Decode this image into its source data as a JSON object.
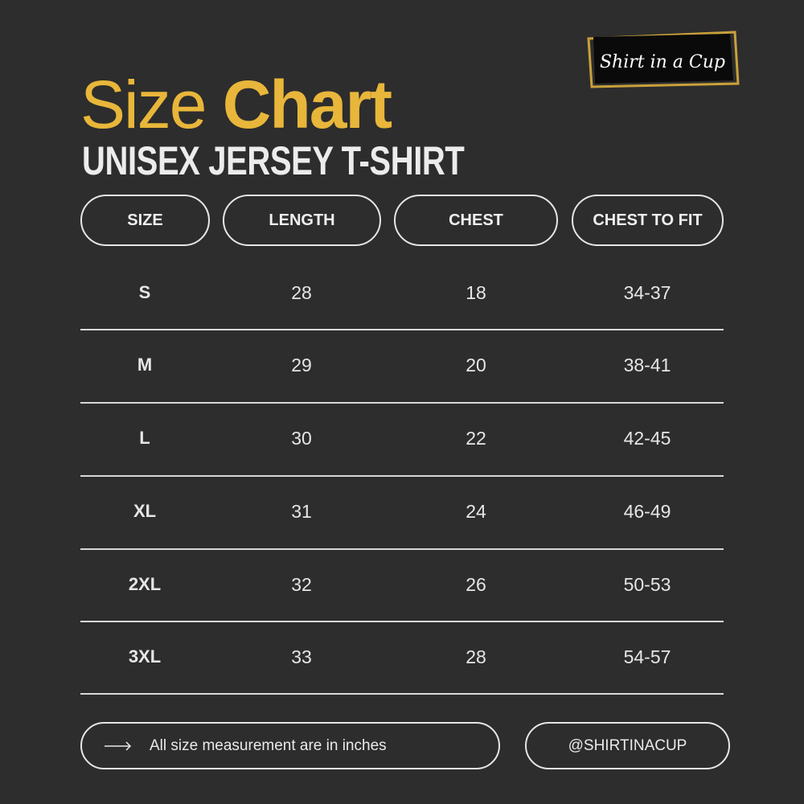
{
  "logo": {
    "text": "Shirt in a Cup",
    "border_color": "#c9a13b"
  },
  "title": {
    "light": "Size",
    "bold": "Chart",
    "color": "#e8b63a"
  },
  "subtitle": "UNISEX JERSEY T-SHIRT",
  "headers": [
    "SIZE",
    "LENGTH",
    "CHEST",
    "CHEST TO FIT"
  ],
  "rows": [
    [
      "S",
      "28",
      "18",
      "34-37"
    ],
    [
      "M",
      "29",
      "20",
      "38-41"
    ],
    [
      "L",
      "30",
      "22",
      "42-45"
    ],
    [
      "XL",
      "31",
      "24",
      "46-49"
    ],
    [
      "2XL",
      "32",
      "26",
      "50-53"
    ],
    [
      "3XL",
      "33",
      "28",
      "54-57"
    ]
  ],
  "footer": {
    "note_icon": "arrow-right-icon",
    "note": "All size measurement are in inches",
    "handle": "@SHIRTINACUP"
  }
}
